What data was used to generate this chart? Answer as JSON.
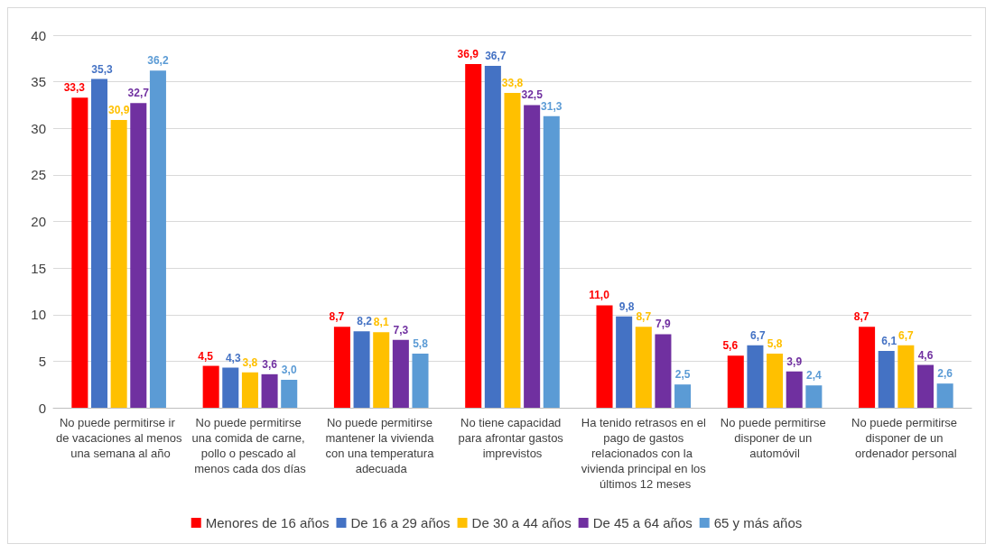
{
  "chart_data": {
    "type": "bar",
    "categories": [
      "No puede permitirse ir de vacaciones al menos una semana al año",
      "No puede permitirse una comida de carne, pollo o pescado al menos cada dos días",
      "No puede permitirse mantener la vivienda con una temperatura adecuada",
      "No tiene capacidad para afrontar gastos imprevistos",
      "Ha tenido retrasos en el pago de gastos relacionados con la vivienda principal en los últimos 12 meses",
      "No puede permitirse disponer de un automóvil",
      "No puede permitirse disponer de un ordenador personal"
    ],
    "series": [
      {
        "name": "Menores de 16 años",
        "color": "#ff0000",
        "values": [
          33.3,
          4.5,
          8.7,
          36.9,
          11.0,
          5.6,
          8.7
        ],
        "value_labels": [
          "33,3",
          "4,5",
          "8,7",
          "36,9",
          "11,0",
          "5,6",
          "8,7"
        ]
      },
      {
        "name": "De 16 a 29 años",
        "color": "#4472c4",
        "values": [
          35.3,
          4.3,
          8.2,
          36.7,
          9.8,
          6.7,
          6.1
        ],
        "value_labels": [
          "35,3",
          "4,3",
          "8,2",
          "36,7",
          "9,8",
          "6,7",
          "6,1"
        ]
      },
      {
        "name": "De 30 a 44 años",
        "color": "#ffc000",
        "values": [
          30.9,
          3.8,
          8.1,
          33.8,
          8.7,
          5.8,
          6.7
        ],
        "value_labels": [
          "30,9",
          "3,8",
          "8,1",
          "33,8",
          "8,7",
          "5,8",
          "6,7"
        ]
      },
      {
        "name": "De 45 a 64 años",
        "color": "#7030a0",
        "values": [
          32.7,
          3.6,
          7.3,
          32.5,
          7.9,
          3.9,
          4.6
        ],
        "value_labels": [
          "32,7",
          "3,6",
          "7,3",
          "32,5",
          "7,9",
          "3,9",
          "4,6"
        ]
      },
      {
        "name": "65 y más años",
        "color": "#5b9bd5",
        "values": [
          36.2,
          3.0,
          5.8,
          31.3,
          2.5,
          2.4,
          2.6
        ],
        "value_labels": [
          "36,2",
          "3,0",
          "5,8",
          "31,3",
          "2,5",
          "2,4",
          "2,6"
        ]
      }
    ],
    "ylim": [
      0,
      40
    ],
    "yticks": [
      0,
      5,
      10,
      15,
      20,
      25,
      30,
      35,
      40
    ],
    "grid": "y",
    "legend": "bottom"
  }
}
